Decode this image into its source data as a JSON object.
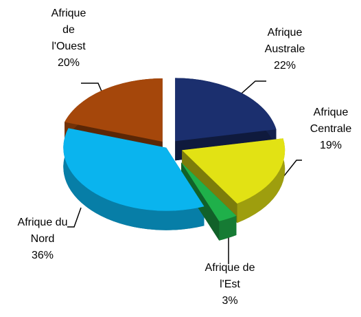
{
  "chart_data": {
    "type": "pie",
    "categories": [
      "Afrique Australe",
      "Afrique Centrale",
      "Afrique de l'Est",
      "Afrique du Nord",
      "Afrique de l'Ouest"
    ],
    "values": [
      22,
      19,
      3,
      36,
      20
    ],
    "value_labels": [
      "22%",
      "19%",
      "3%",
      "36%",
      "20%"
    ],
    "colors": [
      "#1b2f6e",
      "#e2e214",
      "#1fb04a",
      "#0ab4ee",
      "#a5470b"
    ]
  }
}
